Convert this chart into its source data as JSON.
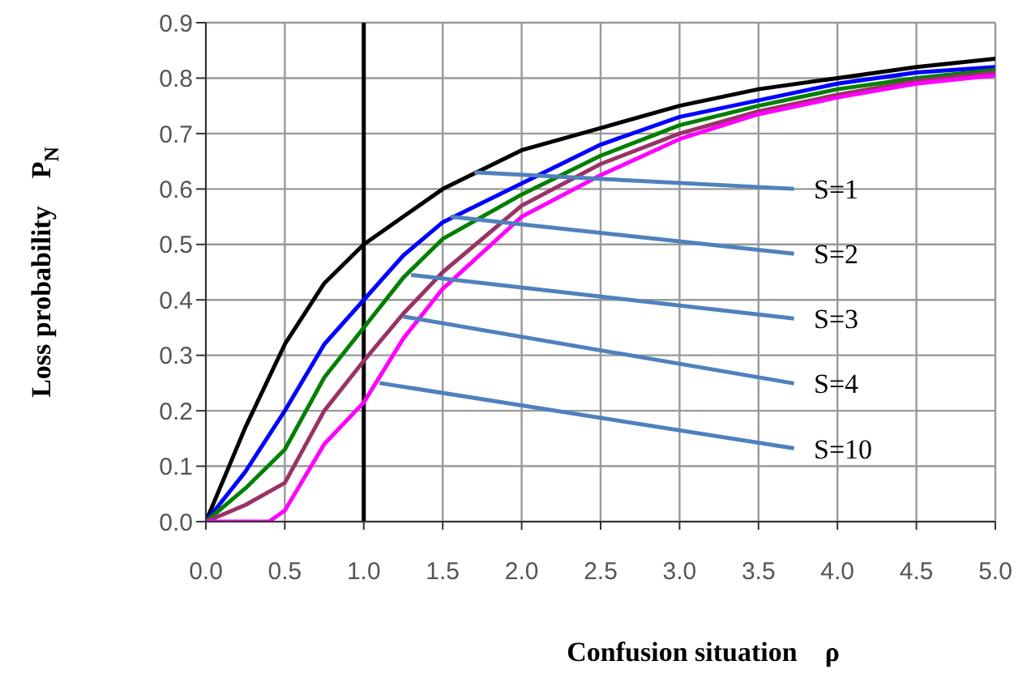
{
  "chart_data": {
    "type": "line",
    "xlabel": "Confusion situation　ρ",
    "ylabel": "Loss probability　P$_{N}$",
    "xlim": [
      0,
      5
    ],
    "ylim": [
      0,
      0.9
    ],
    "xticks": [
      {
        "value": 0,
        "label": "0.0"
      },
      0.5,
      {
        "value": 1,
        "label": "1.0"
      },
      1.5,
      {
        "value": 2,
        "label": "2.0"
      },
      2.5,
      {
        "value": 3,
        "label": "3.0"
      },
      3.5,
      {
        "value": 4,
        "label": "4.0"
      },
      4.5,
      {
        "value": 5,
        "label": "5.0"
      }
    ],
    "yticks": [
      {
        "value": 0,
        "label": "0.0"
      },
      0.1,
      0.2,
      0.3,
      0.4,
      0.5,
      0.6,
      0.7,
      0.8,
      0.9
    ],
    "grid": true,
    "marker": "none",
    "line_style": "solid",
    "x": [
      0,
      0.25,
      0.5,
      0.75,
      1,
      1.25,
      1.5,
      2,
      2.5,
      3,
      3.5,
      4,
      4.5,
      5
    ],
    "series": [
      {
        "color": "#000000",
        "values": [
          0,
          0.17,
          0.32,
          0.43,
          0.5,
          0.55,
          0.6,
          0.67,
          0.71,
          0.75,
          0.78,
          0.8,
          0.82,
          0.835
        ]
      },
      {
        "color": "#0000ff",
        "values": [
          0,
          0.09,
          0.2,
          0.32,
          0.4,
          0.48,
          0.54,
          0.61,
          0.68,
          0.73,
          0.76,
          0.79,
          0.81,
          0.82
        ]
      },
      {
        "color": "#008000",
        "values": [
          0,
          0.06,
          0.13,
          0.26,
          0.35,
          0.44,
          0.51,
          0.59,
          0.66,
          0.715,
          0.75,
          0.78,
          0.8,
          0.815
        ]
      },
      {
        "color": "#993366",
        "values": [
          0,
          0.03,
          0.07,
          0.2,
          0.29,
          0.375,
          0.45,
          0.57,
          0.645,
          0.7,
          0.74,
          0.77,
          0.795,
          0.81
        ]
      },
      {
        "color": "#ff00ff",
        "x": [
          0,
          0.25,
          0.4,
          0.5,
          0.75,
          1,
          1.25,
          1.5,
          2,
          2.5,
          3,
          3.5,
          4,
          4.5,
          5
        ],
        "values": [
          0,
          0,
          0,
          0.02,
          0.14,
          0.215,
          0.33,
          0.42,
          0.55,
          0.625,
          0.69,
          0.735,
          0.765,
          0.79,
          0.805
        ]
      }
    ],
    "ref_lines": [
      {
        "axis": "x",
        "value": 1,
        "color": "#000000"
      }
    ],
    "annotations": [
      {
        "text": "S=1",
        "x": 1.7,
        "y": 0.63
      },
      {
        "text": "S=2",
        "x": 1.55,
        "y": 0.55
      },
      {
        "text": "S=3",
        "x": 1.3,
        "y": 0.445
      },
      {
        "text": "S=4",
        "x": 1.25,
        "y": 0.37
      },
      {
        "text": "S=10",
        "x": 1.1,
        "y": 0.25
      }
    ]
  }
}
